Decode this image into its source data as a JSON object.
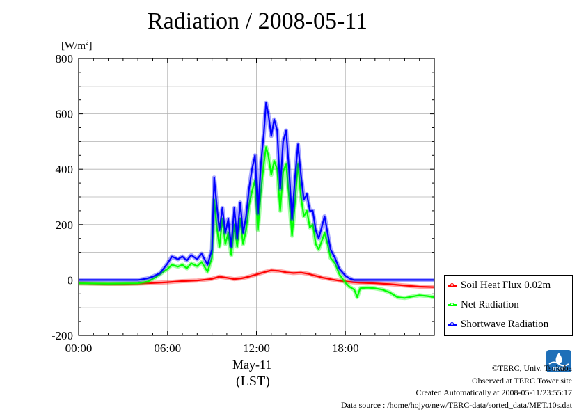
{
  "page": {
    "title": "Radiation / 2008-05-11"
  },
  "axes": {
    "unit_label": "[W/m²]",
    "x_date_label": "May-11",
    "x_tz_label": "(LST)"
  },
  "legend": [
    {
      "name": "Soil Heat Flux 0.02m",
      "color": "#ff0000"
    },
    {
      "name": "Net Radiation",
      "color": "#00ff00"
    },
    {
      "name": "Shortwave Radiation",
      "color": "#0000ff"
    }
  ],
  "footer": {
    "line1": "©TERC, Univ. Tsukuba",
    "line2": "Observed at TERC Tower site",
    "line3": "Created Automatically at 2008-05-11/23:55:17",
    "line4": "Data source : /home/hojyo/new/TERC-data/sorted_data/MET.10s.dat"
  },
  "logo": {
    "icon": "terc-logo-icon",
    "text": "TERC"
  },
  "chart_data": {
    "type": "line",
    "title": "Radiation / 2008-05-11",
    "ylabel": "[W/m²]",
    "xlabel": "May-11 (LST)",
    "xlim": [
      0,
      24
    ],
    "ylim": [
      -200,
      800
    ],
    "x_ticks": [
      0,
      6,
      12,
      18
    ],
    "x_tick_labels": [
      "00:00",
      "06:00",
      "12:00",
      "18:00"
    ],
    "y_ticks": [
      -200,
      0,
      200,
      400,
      600,
      800
    ],
    "y_tick_labels": [
      "-200",
      "0",
      "200",
      "400",
      "600",
      "800"
    ],
    "grid": true,
    "legend_position": "right",
    "series": [
      {
        "name": "Soil Heat Flux 0.02m",
        "color": "#ff0000",
        "points": [
          [
            0,
            -12
          ],
          [
            1,
            -13
          ],
          [
            2,
            -14
          ],
          [
            3,
            -14
          ],
          [
            4,
            -13
          ],
          [
            5,
            -11
          ],
          [
            6,
            -8
          ],
          [
            7,
            -4
          ],
          [
            8,
            -2
          ],
          [
            9,
            4
          ],
          [
            9.5,
            12
          ],
          [
            10,
            8
          ],
          [
            10.5,
            3
          ],
          [
            11,
            6
          ],
          [
            11.5,
            12
          ],
          [
            12,
            20
          ],
          [
            12.5,
            28
          ],
          [
            13,
            35
          ],
          [
            13.5,
            33
          ],
          [
            14,
            28
          ],
          [
            14.5,
            25
          ],
          [
            15,
            27
          ],
          [
            15.5,
            22
          ],
          [
            16,
            15
          ],
          [
            16.5,
            8
          ],
          [
            17,
            3
          ],
          [
            17.5,
            -2
          ],
          [
            18,
            -5
          ],
          [
            18.5,
            -8
          ],
          [
            19,
            -10
          ],
          [
            20,
            -12
          ],
          [
            21,
            -15
          ],
          [
            22,
            -20
          ],
          [
            23,
            -24
          ],
          [
            24,
            -26
          ]
        ]
      },
      {
        "name": "Net Radiation",
        "color": "#00ff00",
        "points": [
          [
            0,
            -12
          ],
          [
            2,
            -13
          ],
          [
            4,
            -12
          ],
          [
            4.7,
            -5
          ],
          [
            5.2,
            10
          ],
          [
            5.6,
            25
          ],
          [
            6,
            40
          ],
          [
            6.3,
            55
          ],
          [
            6.7,
            48
          ],
          [
            7,
            55
          ],
          [
            7.3,
            42
          ],
          [
            7.6,
            60
          ],
          [
            8,
            50
          ],
          [
            8.3,
            65
          ],
          [
            8.7,
            30
          ],
          [
            9,
            80
          ],
          [
            9.15,
            290
          ],
          [
            9.3,
            200
          ],
          [
            9.5,
            120
          ],
          [
            9.7,
            220
          ],
          [
            9.9,
            130
          ],
          [
            10.1,
            170
          ],
          [
            10.3,
            90
          ],
          [
            10.5,
            200
          ],
          [
            10.7,
            120
          ],
          [
            10.9,
            220
          ],
          [
            11.1,
            130
          ],
          [
            11.3,
            180
          ],
          [
            11.5,
            270
          ],
          [
            11.7,
            320
          ],
          [
            11.9,
            360
          ],
          [
            12.1,
            180
          ],
          [
            12.3,
            320
          ],
          [
            12.5,
            420
          ],
          [
            12.65,
            480
          ],
          [
            12.8,
            450
          ],
          [
            13,
            380
          ],
          [
            13.2,
            430
          ],
          [
            13.4,
            400
          ],
          [
            13.6,
            250
          ],
          [
            13.8,
            390
          ],
          [
            14,
            420
          ],
          [
            14.2,
            300
          ],
          [
            14.4,
            160
          ],
          [
            14.6,
            280
          ],
          [
            14.8,
            420
          ],
          [
            15,
            300
          ],
          [
            15.2,
            230
          ],
          [
            15.4,
            250
          ],
          [
            15.6,
            190
          ],
          [
            15.8,
            200
          ],
          [
            16,
            130
          ],
          [
            16.2,
            110
          ],
          [
            16.4,
            140
          ],
          [
            16.6,
            170
          ],
          [
            16.8,
            130
          ],
          [
            17,
            80
          ],
          [
            17.3,
            60
          ],
          [
            17.6,
            20
          ],
          [
            18,
            -10
          ],
          [
            18.3,
            -25
          ],
          [
            18.6,
            -35
          ],
          [
            18.8,
            -62
          ],
          [
            19,
            -30
          ],
          [
            19.5,
            -28
          ],
          [
            20,
            -30
          ],
          [
            20.5,
            -35
          ],
          [
            21,
            -45
          ],
          [
            21.5,
            -62
          ],
          [
            22,
            -65
          ],
          [
            22.5,
            -60
          ],
          [
            23,
            -55
          ],
          [
            23.5,
            -58
          ],
          [
            24,
            -62
          ]
        ]
      },
      {
        "name": "Shortwave Radiation",
        "color": "#0000ff",
        "points": [
          [
            0,
            0
          ],
          [
            2,
            0
          ],
          [
            4,
            0
          ],
          [
            4.6,
            5
          ],
          [
            5,
            12
          ],
          [
            5.5,
            25
          ],
          [
            6,
            60
          ],
          [
            6.3,
            85
          ],
          [
            6.7,
            75
          ],
          [
            7,
            85
          ],
          [
            7.3,
            70
          ],
          [
            7.6,
            90
          ],
          [
            8,
            75
          ],
          [
            8.3,
            95
          ],
          [
            8.7,
            55
          ],
          [
            9,
            110
          ],
          [
            9.15,
            370
          ],
          [
            9.3,
            280
          ],
          [
            9.5,
            180
          ],
          [
            9.7,
            260
          ],
          [
            9.9,
            170
          ],
          [
            10.1,
            220
          ],
          [
            10.3,
            120
          ],
          [
            10.5,
            260
          ],
          [
            10.7,
            150
          ],
          [
            10.9,
            280
          ],
          [
            11.1,
            170
          ],
          [
            11.3,
            230
          ],
          [
            11.5,
            330
          ],
          [
            11.7,
            400
          ],
          [
            11.9,
            450
          ],
          [
            12.1,
            240
          ],
          [
            12.3,
            420
          ],
          [
            12.5,
            530
          ],
          [
            12.65,
            640
          ],
          [
            12.8,
            600
          ],
          [
            13,
            520
          ],
          [
            13.2,
            580
          ],
          [
            13.4,
            540
          ],
          [
            13.6,
            330
          ],
          [
            13.8,
            500
          ],
          [
            14,
            540
          ],
          [
            14.2,
            400
          ],
          [
            14.4,
            220
          ],
          [
            14.6,
            370
          ],
          [
            14.8,
            490
          ],
          [
            15,
            380
          ],
          [
            15.2,
            290
          ],
          [
            15.4,
            310
          ],
          [
            15.6,
            250
          ],
          [
            15.8,
            250
          ],
          [
            16,
            180
          ],
          [
            16.2,
            150
          ],
          [
            16.4,
            190
          ],
          [
            16.6,
            230
          ],
          [
            16.8,
            170
          ],
          [
            17,
            110
          ],
          [
            17.3,
            80
          ],
          [
            17.6,
            40
          ],
          [
            18,
            15
          ],
          [
            18.3,
            5
          ],
          [
            18.6,
            0
          ],
          [
            19,
            0
          ],
          [
            20,
            0
          ],
          [
            22,
            0
          ],
          [
            24,
            0
          ]
        ]
      }
    ]
  }
}
